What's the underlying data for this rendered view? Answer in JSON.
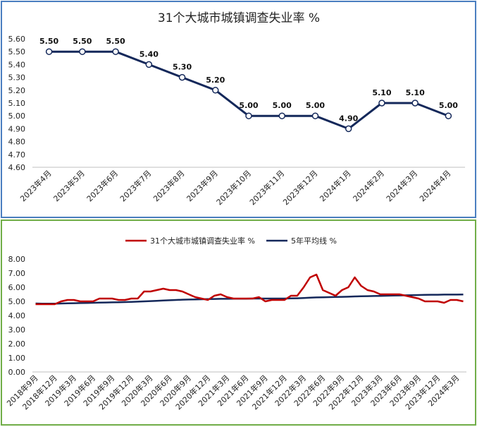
{
  "chart_data": [
    {
      "type": "line",
      "title": "31个大城市城镇调查失业率 %",
      "categories": [
        "2023年4月",
        "2023年5月",
        "2023年6月",
        "2023年7月",
        "2023年8月",
        "2023年9月",
        "2023年10月",
        "2023年11月",
        "2023年12月",
        "2024年1月",
        "2024年2月",
        "2024年3月",
        "2024年4月"
      ],
      "series": [
        {
          "values": [
            5.5,
            5.5,
            5.5,
            5.4,
            5.3,
            5.2,
            5.0,
            5.0,
            5.0,
            4.9,
            5.1,
            5.1,
            5.0
          ]
        }
      ],
      "data_labels": [
        "5.50",
        "5.50",
        "5.50",
        "5.40",
        "5.30",
        "5.20",
        "5.00",
        "5.00",
        "5.00",
        "4.90",
        "5.10",
        "5.10",
        "5.00"
      ],
      "ylim": [
        4.6,
        5.6
      ],
      "yticks": [
        "5.60",
        "5.50",
        "5.40",
        "5.30",
        "5.20",
        "5.10",
        "5.00",
        "4.90",
        "4.80",
        "4.70",
        "4.60"
      ],
      "grid": false,
      "colors": {
        "line": "#14285a",
        "border": "#4a7ec0"
      }
    },
    {
      "type": "line",
      "x": [
        "2018年9月",
        "2018年10月",
        "2018年11月",
        "2018年12月",
        "2019年1月",
        "2019年2月",
        "2019年3月",
        "2019年4月",
        "2019年5月",
        "2019年6月",
        "2019年7月",
        "2019年8月",
        "2019年9月",
        "2019年10月",
        "2019年11月",
        "2019年12月",
        "2020年1月",
        "2020年2月",
        "2020年3月",
        "2020年4月",
        "2020年5月",
        "2020年6月",
        "2020年7月",
        "2020年8月",
        "2020年9月",
        "2020年10月",
        "2020年11月",
        "2020年12月",
        "2021年1月",
        "2021年2月",
        "2021年3月",
        "2021年4月",
        "2021年5月",
        "2021年6月",
        "2021年7月",
        "2021年8月",
        "2021年9月",
        "2021年10月",
        "2021年11月",
        "2021年12月",
        "2022年1月",
        "2022年2月",
        "2022年3月",
        "2022年4月",
        "2022年5月",
        "2022年6月",
        "2022年7月",
        "2022年8月",
        "2022年9月",
        "2022年10月",
        "2022年11月",
        "2022年12月",
        "2023年1月",
        "2023年2月",
        "2023年3月",
        "2023年4月",
        "2023年5月",
        "2023年6月",
        "2023年7月",
        "2023年8月",
        "2023年9月",
        "2023年10月",
        "2023年11月",
        "2023年12月",
        "2024年1月",
        "2024年2月",
        "2024年3月",
        "2024年4月"
      ],
      "xticks": [
        "2018年9月",
        "2018年12月",
        "2019年3月",
        "2019年6月",
        "2019年9月",
        "2019年12月",
        "2020年3月",
        "2020年6月",
        "2020年9月",
        "2020年12月",
        "2021年3月",
        "2021年6月",
        "2021年9月",
        "2021年12月",
        "2022年3月",
        "2022年6月",
        "2022年9月",
        "2022年12月",
        "2023年3月",
        "2023年6月",
        "2023年9月",
        "2023年12月",
        "2024年3月"
      ],
      "series": [
        {
          "name": "31个大城市城镇调查失业率 %",
          "color": "#c00000",
          "values": [
            4.8,
            4.8,
            4.8,
            4.8,
            5.0,
            5.1,
            5.1,
            5.0,
            5.0,
            5.0,
            5.2,
            5.2,
            5.2,
            5.1,
            5.1,
            5.2,
            5.2,
            5.7,
            5.7,
            5.8,
            5.9,
            5.8,
            5.8,
            5.7,
            5.5,
            5.3,
            5.2,
            5.1,
            5.4,
            5.5,
            5.3,
            5.2,
            5.2,
            5.2,
            5.2,
            5.3,
            5.0,
            5.1,
            5.1,
            5.1,
            5.4,
            5.4,
            6.0,
            6.7,
            6.9,
            5.8,
            5.6,
            5.4,
            5.8,
            6.0,
            6.7,
            6.1,
            5.8,
            5.7,
            5.5,
            5.5,
            5.5,
            5.5,
            5.4,
            5.3,
            5.2,
            5.0,
            5.0,
            5.0,
            4.9,
            5.1,
            5.1,
            5.0
          ]
        },
        {
          "name": "5年平均线 %",
          "color": "#14285a",
          "values": [
            4.85,
            4.84,
            4.84,
            4.84,
            4.85,
            4.86,
            4.87,
            4.88,
            4.89,
            4.9,
            4.91,
            4.92,
            4.93,
            4.94,
            4.95,
            4.96,
            4.98,
            5.0,
            5.02,
            5.04,
            5.06,
            5.08,
            5.1,
            5.12,
            5.13,
            5.14,
            5.15,
            5.16,
            5.17,
            5.18,
            5.18,
            5.19,
            5.19,
            5.19,
            5.2,
            5.2,
            5.2,
            5.2,
            5.2,
            5.2,
            5.21,
            5.22,
            5.24,
            5.26,
            5.28,
            5.29,
            5.3,
            5.31,
            5.32,
            5.33,
            5.35,
            5.36,
            5.37,
            5.38,
            5.39,
            5.4,
            5.41,
            5.42,
            5.43,
            5.44,
            5.45,
            5.46,
            5.47,
            5.47,
            5.48,
            5.48,
            5.48,
            5.49
          ]
        }
      ],
      "ylim": [
        0,
        8
      ],
      "yticks": [
        "8.00",
        "7.00",
        "6.00",
        "5.00",
        "4.00",
        "3.00",
        "2.00",
        "1.00",
        "0.00"
      ],
      "grid": false,
      "legend": "top",
      "colors": {
        "border": "#70ad47"
      }
    }
  ]
}
